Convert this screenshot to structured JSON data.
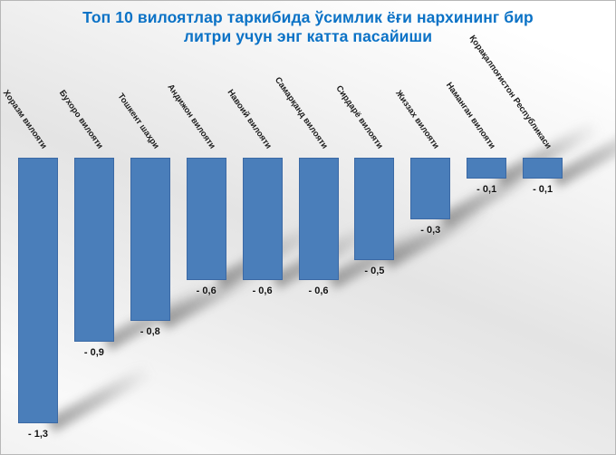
{
  "title": {
    "full": "Топ 10 вилоятлар таркибида ўсимлик ёғи нархининг бир литри учун энг катта пасайиши",
    "line1": "Топ 10 вилоятлар таркибида ўсимлик ёғи нархининг бир",
    "line2": "литри учун энг катта пасайиши"
  },
  "colors": {
    "title_text": "#0b72c6",
    "bar_fill": "#4a7eba",
    "bar_border": "#3b69a5",
    "value_label_text": "#111111",
    "shadow_gray": "#6e6e6e",
    "background_gray": "#e4e4e4"
  },
  "chart_data": {
    "type": "bar",
    "orientation": "vertical-negative",
    "title": "Топ 10 вилоятлар таркибида ўсимлик ёғи нархининг бир литри учун энг катта пасайиши",
    "categories": [
      "Хоразм вилояти",
      "Бухоро вилояти",
      "Тошкент шаҳри",
      "Андижон вилояти",
      "Навоий вилояти",
      "Самарқанд вилояти",
      "Сирдарё вилояти",
      "Жиззах вилояти",
      "Наманган вилояти",
      "Қорақалпоғистон Республикаси"
    ],
    "values": [
      -1.3,
      -0.9,
      -0.8,
      -0.6,
      -0.6,
      -0.6,
      -0.5,
      -0.3,
      -0.1,
      -0.1
    ],
    "value_labels": [
      "- 1,3",
      "- 0,9",
      "- 0,8",
      "- 0,6",
      "- 0,6",
      "- 0,6",
      "- 0,5",
      "- 0,3",
      "- 0,1",
      "- 0,1"
    ],
    "xlabel": "",
    "ylabel": "",
    "ylim": [
      -1.45,
      0
    ],
    "baseline": 0,
    "grid": false,
    "legend": false,
    "category_label_rotation_deg": 55,
    "bar_effect": "perspective-shadow-right"
  }
}
